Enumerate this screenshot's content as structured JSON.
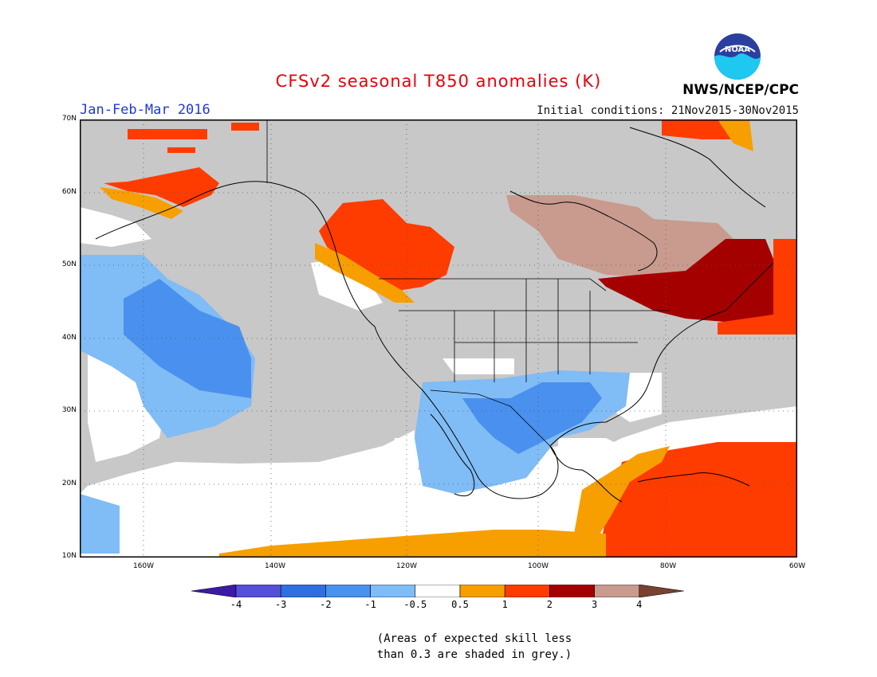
{
  "title": "CFSv2 seasonal T850 anomalies (K)",
  "period": "Jan-Feb-Mar 2016",
  "initial_conditions": "Initial conditions: 21Nov2015-30Nov2015",
  "agency": "NWS/NCEP/CPC",
  "logo_text": "NOAA",
  "lat_labels": [
    "70N",
    "60N",
    "50N",
    "40N",
    "30N",
    "20N",
    "10N"
  ],
  "lon_labels": [
    "160W",
    "140W",
    "120W",
    "100W",
    "80W",
    "60W"
  ],
  "colorbar": {
    "labels": [
      "-4",
      "-3",
      "-2",
      "-1",
      "-0.5",
      "0.5",
      "1",
      "2",
      "3",
      "4"
    ],
    "colors": [
      "#3b1aa8",
      "#5550d8",
      "#2f6fe0",
      "#4a90ee",
      "#80bcf5",
      "#ffffff",
      "#f79f00",
      "#ff3c00",
      "#a50000",
      "#c89b8e",
      "#7a4030"
    ]
  },
  "note_line1": "(Areas of expected skill less",
  "note_line2": "than 0.3 are shaded in grey.)",
  "colors": {
    "grey": "#c8c8c8",
    "title": "#e8000b",
    "period": "#1e38d8"
  },
  "anomaly_regions": [
    {
      "name": "north-pacific-cool",
      "category": "-1"
    },
    {
      "name": "mexico-texas-cool",
      "category": "-1"
    },
    {
      "name": "hawaii-cool",
      "category": "-0.5"
    },
    {
      "name": "pacific-northwest-warm",
      "category": "1"
    },
    {
      "name": "alaska-warm",
      "category": "1"
    },
    {
      "name": "northeast-very-warm",
      "category": "2"
    },
    {
      "name": "hudson-bay-warm",
      "category": "3"
    },
    {
      "name": "caribbean-warm",
      "category": "1"
    }
  ]
}
